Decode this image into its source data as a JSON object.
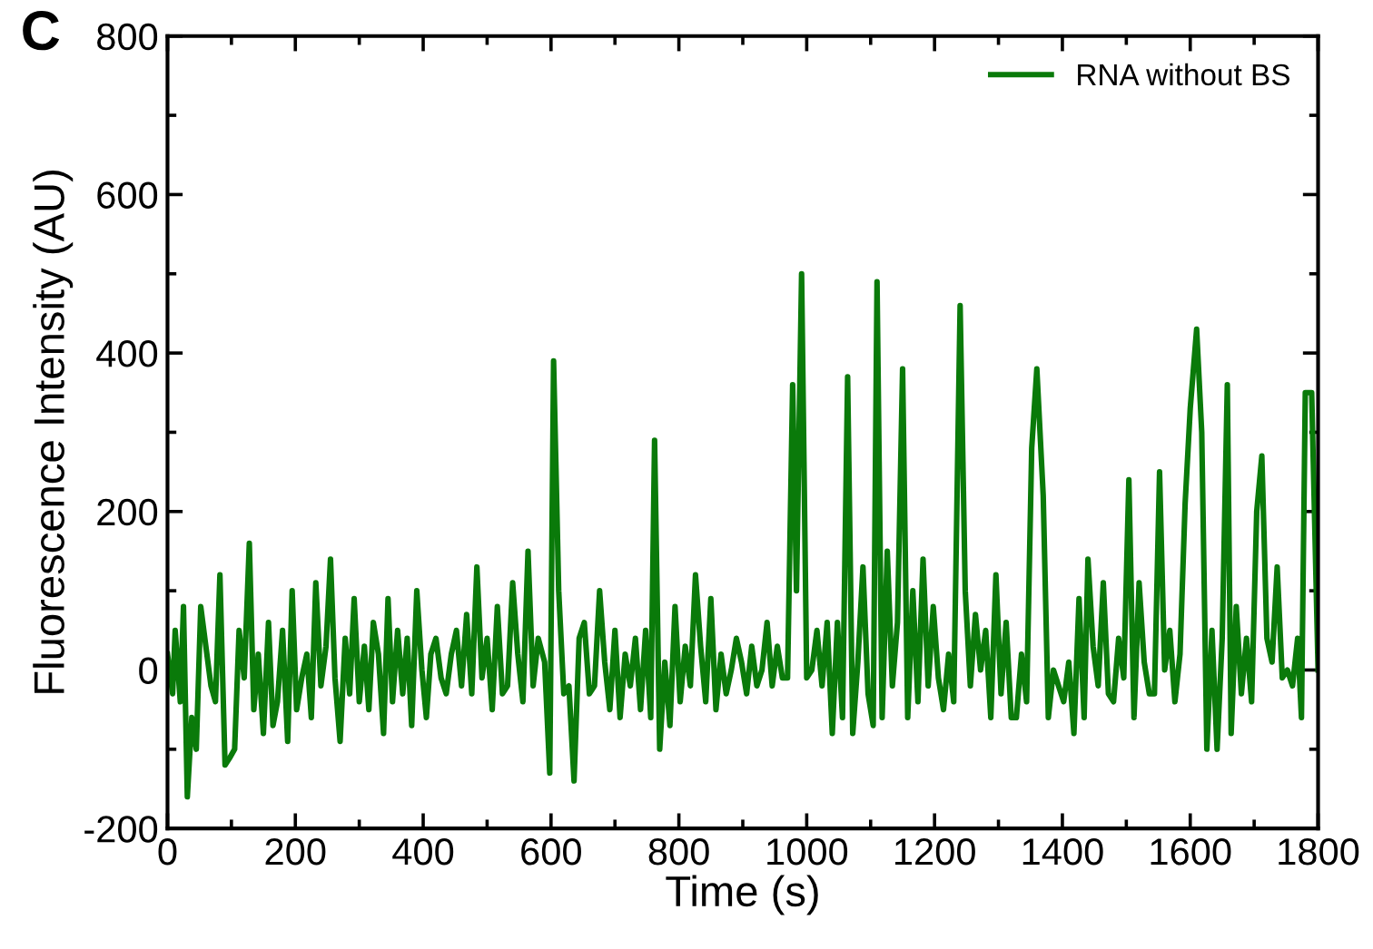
{
  "chart_data": {
    "type": "line",
    "xlabel": "Time (s)",
    "ylabel": "Fluorescence Intensity (AU)",
    "annotations": [
      "C"
    ],
    "xlim": [
      0,
      1800
    ],
    "xticks": [
      0,
      200,
      400,
      600,
      800,
      1000,
      1200,
      1400,
      1600,
      1800
    ],
    "ylim": [
      -200,
      800
    ],
    "yticks": [
      -200,
      0,
      200,
      400,
      600,
      800
    ],
    "grid": false,
    "legend": "top right",
    "marker": "none",
    "line_style": "solid",
    "x": [
      0,
      8,
      12,
      20,
      25,
      31,
      38,
      45,
      52,
      60,
      68,
      75,
      82,
      90,
      98,
      105,
      112,
      120,
      128,
      135,
      142,
      150,
      158,
      165,
      172,
      180,
      188,
      195,
      202,
      210,
      218,
      225,
      232,
      240,
      248,
      255,
      262,
      270,
      278,
      285,
      292,
      300,
      308,
      315,
      322,
      330,
      338,
      345,
      352,
      360,
      368,
      375,
      382,
      390,
      398,
      405,
      412,
      420,
      428,
      436,
      444,
      452,
      460,
      468,
      476,
      484,
      492,
      500,
      508,
      516,
      524,
      532,
      540,
      548,
      556,
      564,
      572,
      580,
      590,
      598,
      604,
      612,
      620,
      628,
      636,
      644,
      652,
      660,
      668,
      676,
      684,
      692,
      700,
      708,
      716,
      724,
      732,
      740,
      748,
      756,
      762,
      770,
      778,
      786,
      794,
      802,
      810,
      818,
      826,
      834,
      842,
      850,
      858,
      866,
      874,
      882,
      890,
      898,
      906,
      914,
      922,
      930,
      938,
      946,
      954,
      962,
      970,
      978,
      984,
      992,
      1000,
      1008,
      1016,
      1024,
      1032,
      1040,
      1048,
      1056,
      1064,
      1072,
      1080,
      1088,
      1096,
      1104,
      1110,
      1118,
      1126,
      1134,
      1142,
      1150,
      1158,
      1166,
      1174,
      1182,
      1190,
      1198,
      1206,
      1214,
      1222,
      1230,
      1240,
      1248,
      1256,
      1264,
      1272,
      1280,
      1288,
      1296,
      1304,
      1312,
      1320,
      1328,
      1336,
      1344,
      1352,
      1360,
      1370,
      1378,
      1386,
      1394,
      1402,
      1410,
      1418,
      1426,
      1434,
      1440,
      1448,
      1456,
      1464,
      1472,
      1480,
      1488,
      1496,
      1504,
      1512,
      1520,
      1528,
      1536,
      1544,
      1552,
      1560,
      1568,
      1576,
      1584,
      1592,
      1600,
      1610,
      1618,
      1626,
      1634,
      1642,
      1650,
      1658,
      1664,
      1672,
      1680,
      1688,
      1696,
      1704,
      1712,
      1720,
      1728,
      1736,
      1744,
      1752,
      1760,
      1768,
      1774,
      1780,
      1790,
      1800
    ],
    "series": [
      {
        "name": "RNA without BS",
        "color": "#0a7a0a",
        "values": [
          20,
          -30,
          50,
          -40,
          80,
          -160,
          -60,
          -100,
          80,
          30,
          -20,
          -40,
          120,
          -120,
          -110,
          -100,
          50,
          -10,
          160,
          -50,
          20,
          -80,
          60,
          -70,
          -40,
          50,
          -90,
          100,
          -50,
          -10,
          20,
          -60,
          110,
          -20,
          30,
          140,
          -10,
          -90,
          40,
          -30,
          90,
          -40,
          30,
          -50,
          60,
          20,
          -80,
          90,
          -40,
          50,
          -30,
          40,
          -70,
          100,
          0,
          -60,
          20,
          40,
          -10,
          -30,
          20,
          50,
          -20,
          70,
          -30,
          130,
          -10,
          40,
          -50,
          80,
          -30,
          -20,
          110,
          20,
          -40,
          150,
          -20,
          40,
          10,
          -130,
          390,
          100,
          -30,
          -20,
          -140,
          40,
          60,
          -30,
          -20,
          100,
          10,
          -50,
          50,
          -60,
          20,
          -20,
          40,
          -50,
          50,
          -60,
          290,
          -100,
          10,
          -70,
          80,
          -40,
          30,
          -20,
          120,
          30,
          -40,
          90,
          -50,
          20,
          -30,
          0,
          40,
          10,
          -30,
          30,
          -20,
          0,
          60,
          -20,
          30,
          -10,
          -10,
          360,
          100,
          500,
          -10,
          0,
          50,
          -20,
          60,
          -80,
          60,
          -60,
          370,
          -80,
          10,
          130,
          -30,
          -70,
          490,
          -60,
          150,
          -20,
          60,
          380,
          -60,
          100,
          -40,
          140,
          -20,
          80,
          -10,
          -50,
          20,
          -40,
          460,
          100,
          -20,
          70,
          0,
          50,
          -60,
          120,
          -30,
          60,
          -60,
          -60,
          20,
          -40,
          280,
          380,
          220,
          -60,
          0,
          -20,
          -40,
          10,
          -80,
          90,
          -60,
          140,
          30,
          -20,
          110,
          -30,
          -40,
          40,
          -10,
          240,
          -60,
          110,
          10,
          -30,
          -30,
          250,
          0,
          50,
          -40,
          20,
          210,
          330,
          430,
          300,
          -100,
          50,
          -100,
          40,
          360,
          -80,
          80,
          -30,
          40,
          -40,
          200,
          270,
          40,
          10,
          130,
          -10,
          0,
          -20,
          40,
          -60,
          350,
          350,
          0
        ]
      }
    ]
  }
}
